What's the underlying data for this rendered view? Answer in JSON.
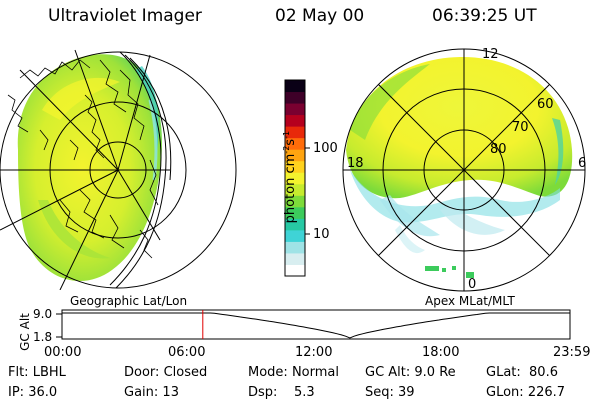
{
  "header": {
    "instrument": "Ultraviolet Imager",
    "date": "02 May 00",
    "time": "06:39:25 UT"
  },
  "colorbar": {
    "label": "photon cm",
    "label_sup1": "-2",
    "label_mid": "s",
    "label_sup2": "-1",
    "ticks": [
      {
        "label": "100",
        "value": 100
      },
      {
        "label": "10",
        "value": 10
      }
    ],
    "colors": [
      "#ffffff",
      "#d8eef0",
      "#9fe3e6",
      "#3fd3d6",
      "#27c9a4",
      "#3ccb5c",
      "#7ddb3a",
      "#c6eb2e",
      "#f3f32e",
      "#ffd21e",
      "#ffa410",
      "#ff6c0a",
      "#e8290a",
      "#b5001e",
      "#7a0030",
      "#3e0028",
      "#0a0016"
    ]
  },
  "polar": {
    "mlt_labels": {
      "top": "12",
      "left": "18",
      "right": "6",
      "bottom": "0"
    },
    "lat_labels": [
      "60",
      "70",
      "80"
    ]
  },
  "maps": {
    "left_caption": "Geographic Lat/Lon",
    "right_caption": "Apex MLat/MLT"
  },
  "timeline": {
    "ylabel": "GC Alt",
    "y_ticks": [
      "9.0",
      "1.8"
    ],
    "x_ticks": [
      "00:00",
      "06:00",
      "12:00",
      "18:00",
      "23:59"
    ],
    "current_time": "06:39"
  },
  "info": {
    "filter_label": "Flt:",
    "filter_value": "LBHL",
    "ip_label": "IP:",
    "ip_value": "36.0",
    "door_label": "Door:",
    "door_value": "Closed",
    "gain_label": "Gain:",
    "gain_value": "13",
    "mode_label": "Mode:",
    "mode_value": "Normal",
    "dsp_label": "Dsp:",
    "dsp_value": "5.3",
    "gcalt_label": "GC Alt:",
    "gcalt_value": "9.0 Re",
    "seq_label": "Seq:",
    "seq_value": "39",
    "glat_label": "GLat:",
    "glat_value": "80.6",
    "glon_label": "GLon:",
    "glon_value": "226.7"
  }
}
